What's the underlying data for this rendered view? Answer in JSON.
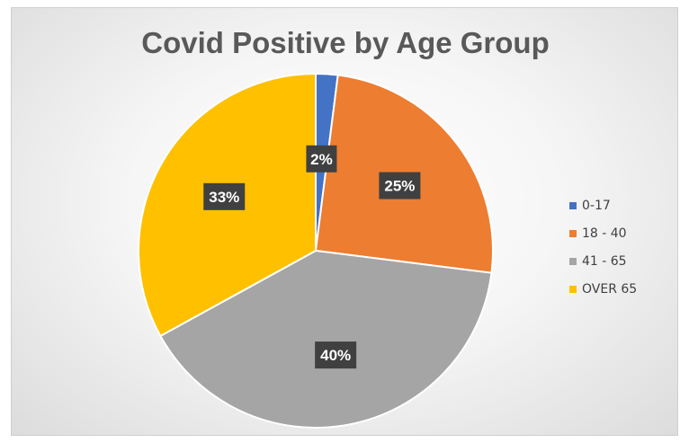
{
  "chart_data": {
    "type": "pie",
    "title": "Covid Positive by Age Group",
    "categories": [
      "0-17",
      "18 - 40",
      "41 - 65",
      "OVER 65"
    ],
    "values": [
      2,
      25,
      40,
      33
    ],
    "data_labels": [
      "2%",
      "25%",
      "40%",
      "33%"
    ],
    "colors": [
      "#4472C4",
      "#ED7D31",
      "#A5A5A5",
      "#FFC000"
    ],
    "legend_position": "right"
  }
}
